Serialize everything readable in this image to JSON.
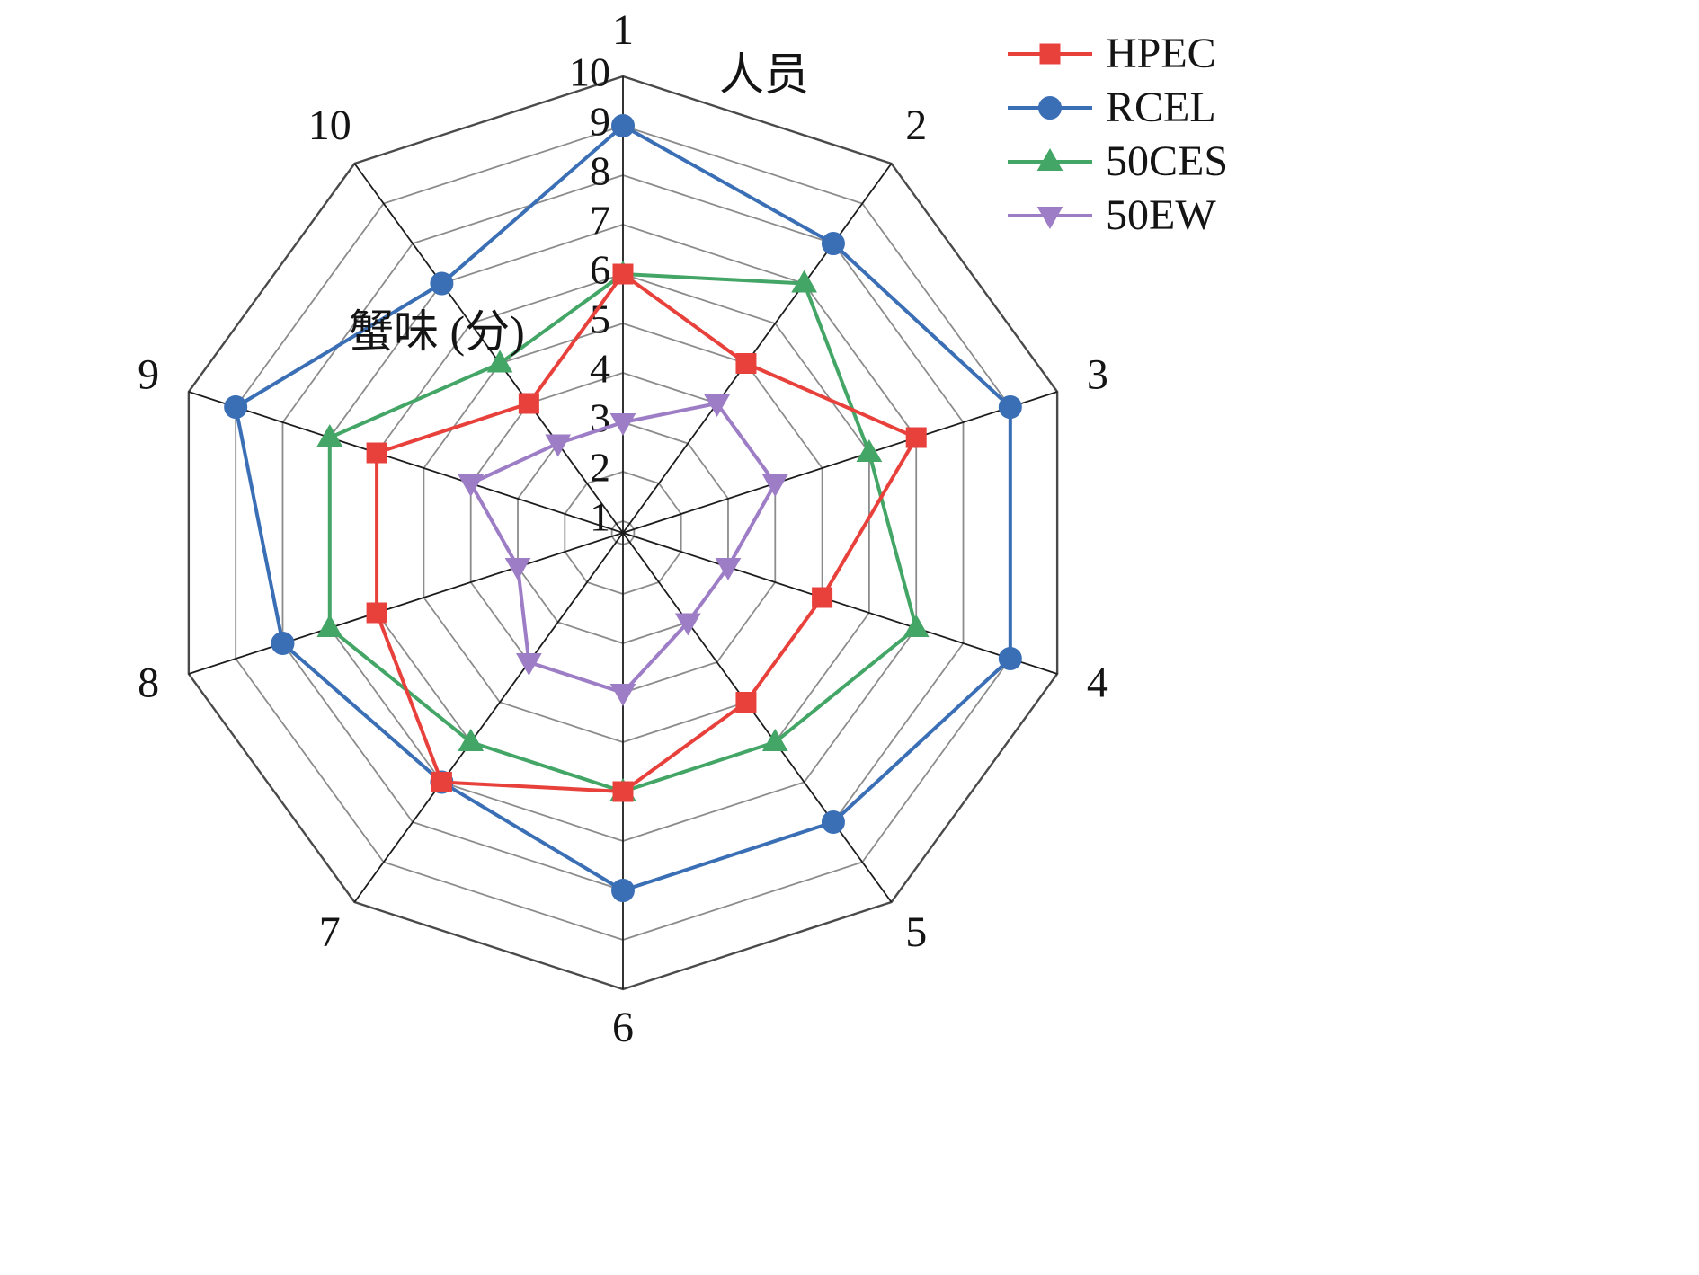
{
  "chart_data": {
    "type": "radar",
    "axis_title": "人员",
    "radial_title": "蟹味 (分)",
    "categories": [
      "1",
      "2",
      "3",
      "4",
      "5",
      "6",
      "7",
      "8",
      "9",
      "10"
    ],
    "r_axis": {
      "min": 0.76,
      "max": 10,
      "ticks": [
        1,
        2,
        3,
        4,
        5,
        6,
        7,
        8,
        9,
        10
      ]
    },
    "grid": {
      "rings": 10,
      "ring_color": "#8c8c8c",
      "outer_ring_color": "#4a4a4a",
      "spoke_color": "#1c1c1c"
    },
    "legend_position": "top-right",
    "series": [
      {
        "name": "HPEC",
        "color": "#e8413c",
        "marker": "square",
        "values": [
          6,
          5,
          7,
          5,
          5,
          6,
          7,
          6,
          6,
          4
        ]
      },
      {
        "name": "RCEL",
        "color": "#3a6fb6",
        "marker": "circle",
        "values": [
          9,
          8,
          9,
          9,
          8,
          8,
          7,
          8,
          9,
          7
        ]
      },
      {
        "name": "50CES",
        "color": "#43a566",
        "marker": "triangle-up",
        "values": [
          6,
          7,
          6,
          7,
          6,
          6,
          6,
          7,
          7,
          5
        ]
      },
      {
        "name": "50EW",
        "color": "#9d7ec6",
        "marker": "triangle-down",
        "values": [
          3,
          4,
          4,
          3,
          3,
          4,
          4,
          3,
          4,
          3
        ]
      }
    ]
  }
}
